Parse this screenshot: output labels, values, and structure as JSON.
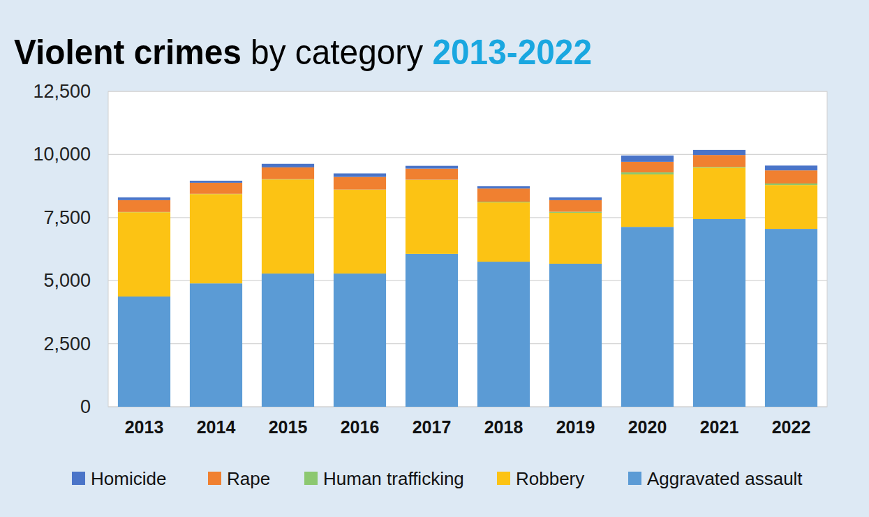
{
  "chart_data": {
    "type": "bar",
    "title": "Violent crimes by category 2013-2022",
    "stacked": true,
    "grid": true,
    "legend": "bottom",
    "categories": [
      "2013",
      "2014",
      "2015",
      "2016",
      "2017",
      "2018",
      "2019",
      "2020",
      "2021",
      "2022"
    ],
    "ylim": [
      0,
      12500
    ],
    "yticks": [
      0,
      {
        "value": 2500,
        "label": "2,500"
      },
      {
        "value": 5000,
        "label": "5,000"
      },
      {
        "value": 7500,
        "label": "7,500"
      },
      {
        "value": 10000,
        "label": "10,000"
      },
      {
        "value": 12500,
        "label": "12,500"
      }
    ],
    "series": [
      {
        "name": "Aggravated assault",
        "color": "#5b9bd5",
        "values": [
          4370,
          4890,
          5280,
          5280,
          6060,
          5750,
          5670,
          7130,
          7440,
          7050
        ]
      },
      {
        "name": "Robbery",
        "color": "#fcc314",
        "values": [
          3340,
          3540,
          3730,
          3320,
          2930,
          2350,
          2020,
          2080,
          2040,
          1740
        ]
      },
      {
        "name": "Human trafficking",
        "color": "#8cc870",
        "values": [
          10,
          10,
          10,
          10,
          10,
          30,
          40,
          80,
          30,
          60
        ]
      },
      {
        "name": "Rape",
        "color": "#f08030",
        "values": [
          470,
          440,
          470,
          500,
          440,
          520,
          460,
          420,
          470,
          520
        ]
      },
      {
        "name": "Homicide",
        "color": "#4a74c8",
        "values": [
          110,
          80,
          140,
          140,
          110,
          90,
          110,
          250,
          200,
          190
        ]
      }
    ]
  }
}
